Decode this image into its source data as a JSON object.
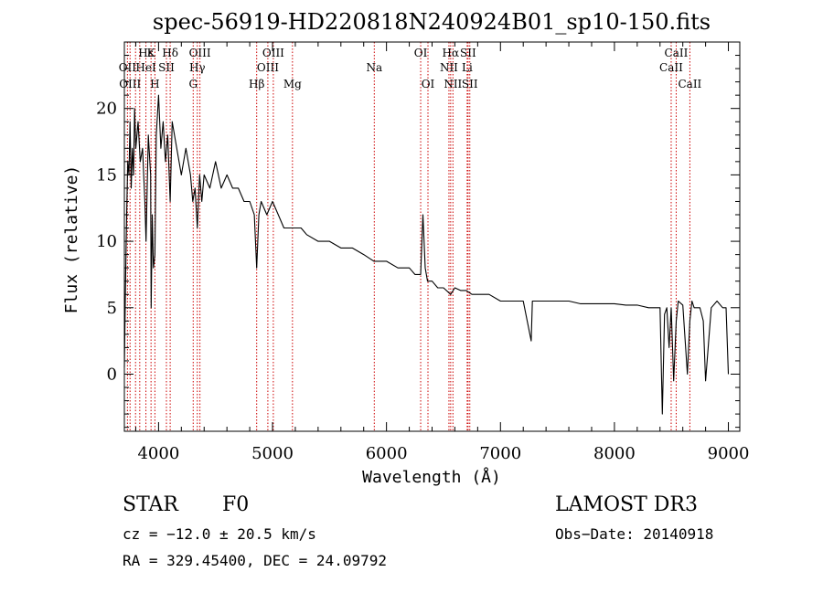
{
  "chart_data": {
    "type": "line",
    "title": "spec-56919-HD220818N240924B01_sp10-150.fits",
    "xlabel": "Wavelength (Å)",
    "ylabel": "Flux (relative)",
    "xlim": [
      3700,
      9100
    ],
    "ylim": [
      -4.3,
      25.0
    ],
    "x_ticks": [
      4000,
      5000,
      6000,
      7000,
      8000,
      9000
    ],
    "y_ticks": [
      0,
      5,
      10,
      15,
      20
    ],
    "series": [
      {
        "name": "flux",
        "x": [
          3700,
          3710,
          3720,
          3730,
          3740,
          3750,
          3760,
          3770,
          3780,
          3790,
          3800,
          3820,
          3840,
          3860,
          3880,
          3890,
          3910,
          3930,
          3935,
          3945,
          3955,
          3968,
          3980,
          4000,
          4020,
          4040,
          4060,
          4080,
          4102,
          4120,
          4140,
          4160,
          4200,
          4240,
          4280,
          4300,
          4320,
          4340,
          4360,
          4380,
          4400,
          4450,
          4500,
          4550,
          4600,
          4650,
          4700,
          4750,
          4800,
          4840,
          4861,
          4880,
          4900,
          4950,
          5000,
          5050,
          5100,
          5150,
          5200,
          5250,
          5300,
          5400,
          5500,
          5600,
          5700,
          5800,
          5890,
          5950,
          6000,
          6100,
          6200,
          6250,
          6300,
          6320,
          6340,
          6360,
          6400,
          6450,
          6500,
          6563,
          6600,
          6650,
          6700,
          6750,
          6800,
          6900,
          7000,
          7100,
          7200,
          7270,
          7280,
          7300,
          7400,
          7500,
          7600,
          7700,
          7800,
          7900,
          8000,
          8100,
          8200,
          8300,
          8400,
          8420,
          8440,
          8460,
          8480,
          8498,
          8520,
          8542,
          8560,
          8600,
          8640,
          8662,
          8680,
          8700,
          8750,
          8780,
          8800,
          8850,
          8900,
          8950,
          8980,
          9000
        ],
        "y": [
          0.5,
          6.5,
          12,
          16,
          15,
          19,
          14,
          17,
          15,
          20,
          17,
          19,
          16,
          17,
          13,
          10,
          18,
          15,
          5,
          12,
          8,
          9,
          18,
          21,
          17,
          19,
          16,
          18,
          13,
          19,
          18,
          17,
          15,
          17,
          15,
          13,
          14,
          11,
          15,
          13,
          15,
          14,
          16,
          14,
          15,
          14,
          14,
          13,
          13,
          12,
          8,
          12,
          13,
          12,
          13,
          12,
          11,
          11,
          11,
          11,
          10.5,
          10,
          10,
          9.5,
          9.5,
          9,
          8.5,
          8.5,
          8.5,
          8,
          8,
          7.5,
          7.5,
          12,
          8,
          7,
          7,
          6.5,
          6.5,
          6,
          6.5,
          6.3,
          6.3,
          6,
          6,
          6,
          5.5,
          5.5,
          5.5,
          2.5,
          5.5,
          5.5,
          5.5,
          5.5,
          5.5,
          5.3,
          5.3,
          5.3,
          5.3,
          5.2,
          5.2,
          5,
          5,
          -3,
          4.5,
          5,
          2,
          5,
          -0.5,
          4,
          5.5,
          5.2,
          0,
          4,
          5.5,
          5,
          5,
          4,
          -0.5,
          5,
          5.5,
          5,
          5,
          0
        ]
      }
    ],
    "line_labels": [
      {
        "label": "Hε",
        "x": 3889,
        "row": 1
      },
      {
        "label": "OII",
        "x": 3727,
        "row": 2
      },
      {
        "label": "OIII",
        "x": 3750,
        "row": 3
      },
      {
        "label": "K",
        "x": 3934,
        "row": 1
      },
      {
        "label": "HeI",
        "x": 3889,
        "row": 2
      },
      {
        "label": "H",
        "x": 3968,
        "row": 3
      },
      {
        "label": "SII",
        "x": 4069,
        "row": 2
      },
      {
        "label": "Hδ",
        "x": 4102,
        "row": 1
      },
      {
        "label": "OIII",
        "x": 4363,
        "row": 1
      },
      {
        "label": "Hγ",
        "x": 4340,
        "row": 2
      },
      {
        "label": "G",
        "x": 4304,
        "row": 3
      },
      {
        "label": "OIII",
        "x": 5007,
        "row": 1
      },
      {
        "label": "OIII",
        "x": 4959,
        "row": 2
      },
      {
        "label": "Hβ",
        "x": 4861,
        "row": 3
      },
      {
        "label": "Mg",
        "x": 5175,
        "row": 3
      },
      {
        "label": "Na",
        "x": 5893,
        "row": 2
      },
      {
        "label": "OI",
        "x": 6300,
        "row": 1
      },
      {
        "label": "OI",
        "x": 6364,
        "row": 3
      },
      {
        "label": "Hα",
        "x": 6563,
        "row": 1
      },
      {
        "label": "SII",
        "x": 6716,
        "row": 1
      },
      {
        "label": "NII",
        "x": 6548,
        "row": 2
      },
      {
        "label": "Li",
        "x": 6708,
        "row": 2
      },
      {
        "label": "NII",
        "x": 6583,
        "row": 3
      },
      {
        "label": "SII",
        "x": 6731,
        "row": 3
      },
      {
        "label": "CaII",
        "x": 8542,
        "row": 1
      },
      {
        "label": "CaII",
        "x": 8498,
        "row": 2
      },
      {
        "label": "CaII",
        "x": 8662,
        "row": 3
      }
    ],
    "line_positions": [
      3727,
      3750,
      3798,
      3835,
      3889,
      3934,
      3968,
      4069,
      4102,
      4304,
      4340,
      4363,
      4861,
      4959,
      5007,
      5175,
      5893,
      6300,
      6364,
      6548,
      6563,
      6583,
      6708,
      6716,
      6731,
      8498,
      8542,
      8662
    ],
    "colors": {
      "curve": "#000000",
      "line_markers": "#cc0000",
      "axes": "#000000"
    }
  },
  "footer": {
    "object_class": "STAR",
    "subclass": "F0",
    "survey": "LAMOST DR3",
    "cz": "cz = −12.0 ± 20.5 km/s",
    "obs_date": "Obs−Date: 20140918",
    "ra_dec": "RA = 329.45400, DEC =  24.09792"
  }
}
